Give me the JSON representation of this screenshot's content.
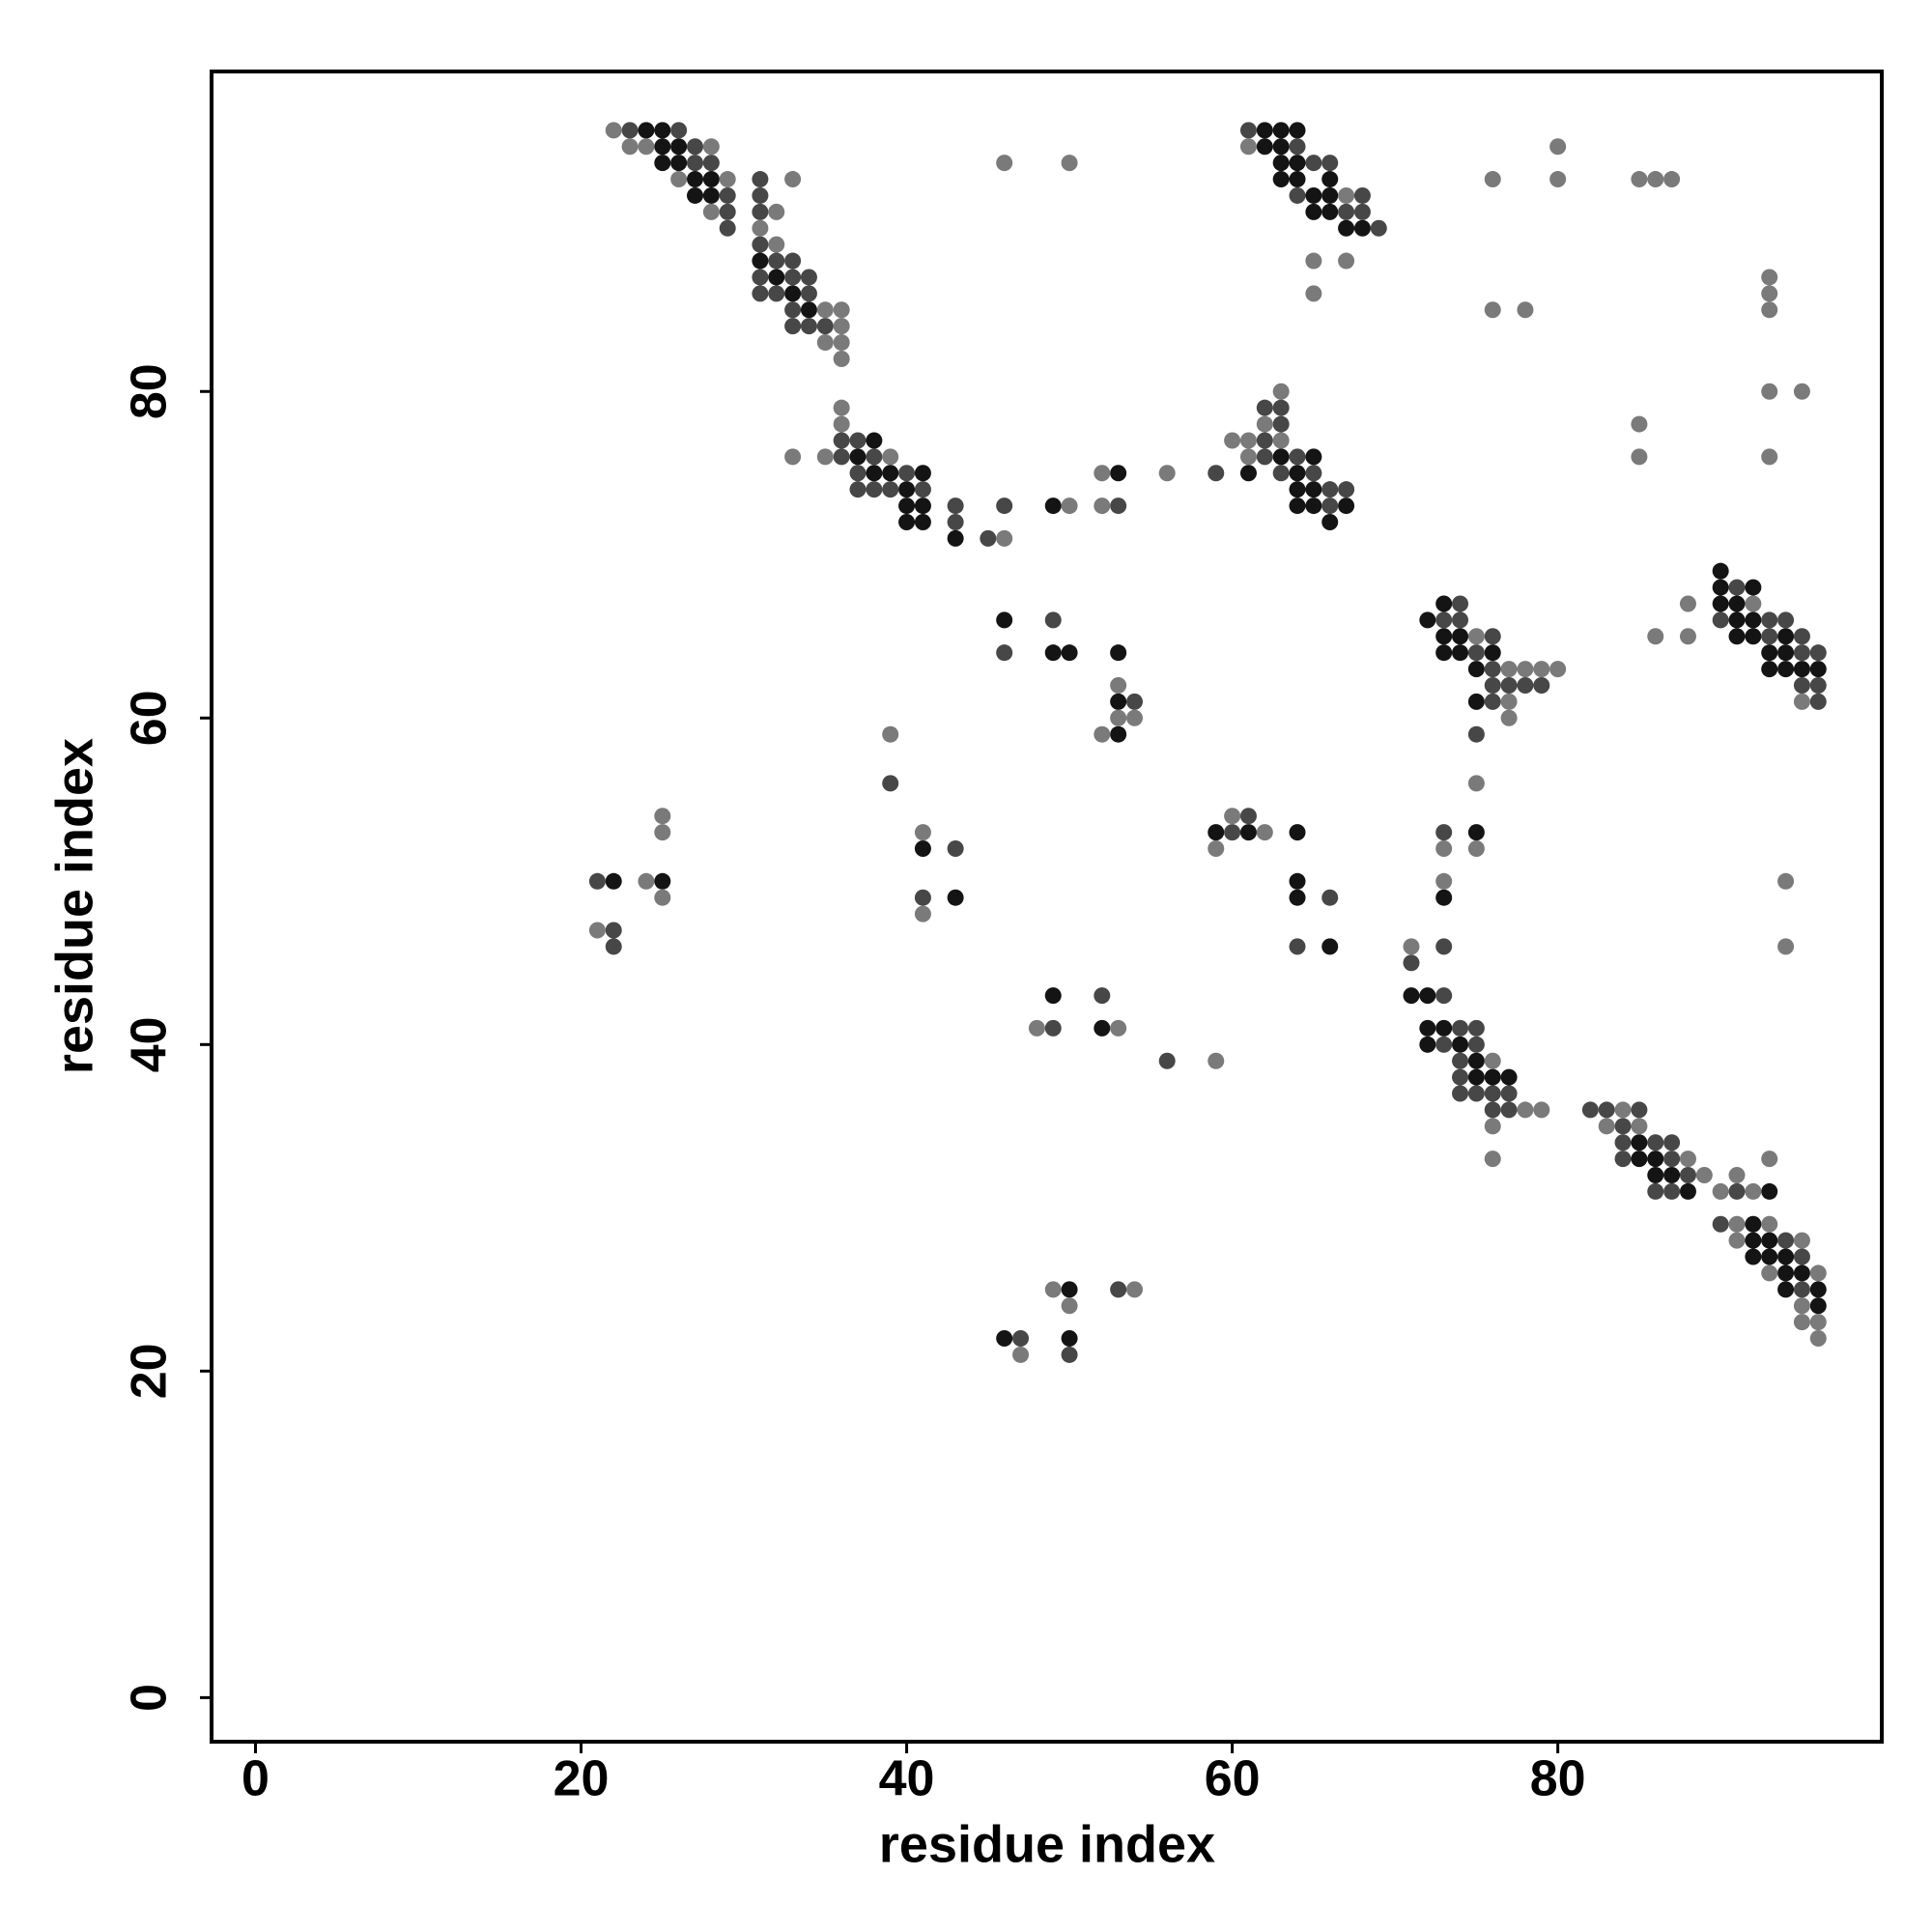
{
  "chart_data": {
    "type": "scatter",
    "xlabel": "residue index",
    "ylabel": "residue index",
    "xlim": [
      -2.7,
      99.9
    ],
    "ylim": [
      -2.7,
      99.6
    ],
    "xticks": [
      0,
      20,
      40,
      60,
      80
    ],
    "yticks": [
      0,
      20,
      40,
      60,
      80
    ],
    "series": [
      {
        "color": "#141414",
        "x": [
          24,
          25,
          62,
          63,
          64,
          25,
          26,
          62,
          63,
          25,
          26,
          63,
          64,
          27,
          28,
          63,
          64,
          66,
          27,
          28,
          65,
          66,
          65,
          66,
          67,
          68,
          31,
          32,
          33,
          34,
          38,
          37,
          63,
          65,
          38,
          39,
          41,
          53,
          61,
          64,
          40,
          64,
          65,
          40,
          41,
          49,
          64,
          65,
          67,
          40,
          41,
          66,
          43,
          90,
          90,
          92,
          73,
          90,
          91,
          46,
          72,
          91,
          92,
          73,
          74,
          91,
          92,
          94,
          49,
          50,
          53,
          73,
          74,
          76,
          93,
          94,
          75,
          93,
          94,
          95,
          96,
          53,
          75,
          53,
          59,
          61,
          64,
          75,
          41,
          22,
          25,
          64,
          43,
          64,
          73,
          66,
          49,
          71,
          72,
          52,
          72,
          73,
          72,
          74,
          75,
          75,
          76,
          77,
          85,
          85,
          86,
          86,
          87,
          88,
          93,
          92,
          92,
          93,
          92,
          93,
          94,
          94,
          95,
          50,
          94,
          96,
          96,
          46,
          50
        ],
        "values": [
          96,
          96,
          96,
          96,
          96,
          95,
          95,
          95,
          95,
          94,
          94,
          94,
          94,
          93,
          93,
          93,
          93,
          93,
          92,
          92,
          92,
          92,
          91,
          91,
          90,
          90,
          88,
          87,
          86,
          85,
          77,
          76,
          76,
          76,
          75,
          75,
          75,
          75,
          75,
          75,
          74,
          74,
          74,
          73,
          73,
          73,
          73,
          73,
          73,
          72,
          72,
          72,
          71,
          69,
          68,
          68,
          67,
          67,
          67,
          66,
          66,
          66,
          66,
          65,
          65,
          65,
          65,
          65,
          64,
          64,
          64,
          64,
          64,
          64,
          64,
          64,
          63,
          63,
          63,
          63,
          63,
          61,
          61,
          59,
          53,
          53,
          53,
          53,
          52,
          50,
          50,
          50,
          49,
          49,
          49,
          46,
          43,
          43,
          43,
          41,
          41,
          41,
          40,
          40,
          39,
          38,
          38,
          38,
          34,
          33,
          33,
          32,
          32,
          31,
          31,
          29,
          28,
          28,
          27,
          27,
          27,
          26,
          26,
          25,
          25,
          25,
          24,
          22,
          22
        ]
      },
      {
        "color": "#474747",
        "x": [
          23,
          26,
          61,
          27,
          64,
          27,
          28,
          65,
          66,
          31,
          29,
          31,
          64,
          68,
          29,
          31,
          67,
          68,
          29,
          69,
          31,
          32,
          33,
          31,
          33,
          34,
          31,
          32,
          34,
          33,
          33,
          34,
          35,
          62,
          63,
          63,
          36,
          37,
          62,
          36,
          38,
          62,
          64,
          37,
          40,
          59,
          63,
          65,
          37,
          38,
          39,
          41,
          66,
          67,
          43,
          46,
          53,
          66,
          43,
          45,
          91,
          74,
          49,
          73,
          74,
          90,
          93,
          94,
          76,
          93,
          95,
          46,
          75,
          95,
          96,
          76,
          76,
          77,
          78,
          79,
          95,
          96,
          54,
          76,
          96,
          75,
          39,
          61,
          60,
          73,
          43,
          21,
          41,
          66,
          22,
          22,
          64,
          73,
          71,
          52,
          73,
          49,
          74,
          75,
          73,
          75,
          56,
          74,
          74,
          74,
          75,
          76,
          77,
          76,
          77,
          82,
          83,
          85,
          84,
          84,
          86,
          87,
          84,
          87,
          88,
          86,
          87,
          91,
          90,
          94,
          95,
          53,
          95,
          47,
          50
        ],
        "values": [
          96,
          96,
          96,
          95,
          95,
          94,
          94,
          94,
          94,
          93,
          92,
          92,
          92,
          92,
          91,
          91,
          91,
          91,
          90,
          90,
          89,
          88,
          88,
          87,
          87,
          87,
          86,
          86,
          86,
          85,
          84,
          84,
          84,
          79,
          79,
          78,
          77,
          77,
          77,
          76,
          76,
          76,
          76,
          75,
          75,
          75,
          75,
          75,
          74,
          74,
          74,
          74,
          74,
          74,
          73,
          73,
          73,
          73,
          72,
          71,
          68,
          67,
          66,
          66,
          66,
          66,
          66,
          66,
          65,
          65,
          65,
          64,
          64,
          64,
          64,
          63,
          62,
          62,
          62,
          62,
          62,
          62,
          61,
          61,
          61,
          59,
          56,
          54,
          53,
          53,
          52,
          50,
          49,
          49,
          47,
          46,
          46,
          46,
          45,
          43,
          43,
          41,
          41,
          41,
          40,
          40,
          39,
          39,
          38,
          37,
          37,
          37,
          37,
          36,
          36,
          36,
          36,
          36,
          35,
          34,
          34,
          34,
          33,
          33,
          32,
          31,
          31,
          31,
          29,
          28,
          27,
          25,
          25,
          22,
          21
        ]
      },
      {
        "color": "#7a7a7a",
        "x": [
          22,
          23,
          24,
          28,
          61,
          80,
          46,
          50,
          26,
          29,
          33,
          76,
          80,
          85,
          86,
          87,
          67,
          28,
          32,
          31,
          32,
          65,
          67,
          93,
          65,
          93,
          35,
          36,
          76,
          78,
          93,
          36,
          35,
          36,
          36,
          63,
          93,
          95,
          36,
          36,
          62,
          85,
          60,
          61,
          63,
          33,
          35,
          39,
          61,
          85,
          93,
          52,
          56,
          50,
          52,
          46,
          88,
          92,
          75,
          86,
          88,
          77,
          78,
          79,
          80,
          53,
          77,
          95,
          53,
          54,
          77,
          39,
          52,
          75,
          25,
          60,
          25,
          41,
          62,
          59,
          73,
          75,
          24,
          73,
          94,
          25,
          41,
          21,
          71,
          94,
          48,
          53,
          59,
          76,
          78,
          79,
          84,
          76,
          83,
          85,
          76,
          88,
          93,
          89,
          91,
          90,
          92,
          91,
          93,
          91,
          95,
          93,
          96,
          49,
          54,
          50,
          95,
          95,
          96,
          96,
          47
        ],
        "values": [
          96,
          95,
          95,
          95,
          95,
          95,
          94,
          94,
          93,
          93,
          93,
          93,
          93,
          93,
          93,
          93,
          92,
          91,
          91,
          90,
          89,
          88,
          88,
          87,
          86,
          86,
          85,
          85,
          85,
          85,
          85,
          84,
          83,
          83,
          82,
          80,
          80,
          80,
          79,
          78,
          78,
          78,
          77,
          77,
          77,
          76,
          76,
          76,
          76,
          76,
          76,
          75,
          75,
          73,
          73,
          71,
          67,
          67,
          65,
          65,
          65,
          63,
          63,
          63,
          63,
          62,
          61,
          61,
          60,
          60,
          60,
          59,
          59,
          56,
          54,
          54,
          53,
          53,
          53,
          52,
          52,
          52,
          50,
          50,
          50,
          49,
          48,
          47,
          46,
          46,
          41,
          41,
          39,
          39,
          36,
          36,
          36,
          35,
          35,
          35,
          33,
          33,
          33,
          32,
          32,
          31,
          31,
          29,
          29,
          28,
          28,
          26,
          26,
          25,
          25,
          24,
          24,
          23,
          23,
          22,
          21
        ]
      }
    ]
  }
}
